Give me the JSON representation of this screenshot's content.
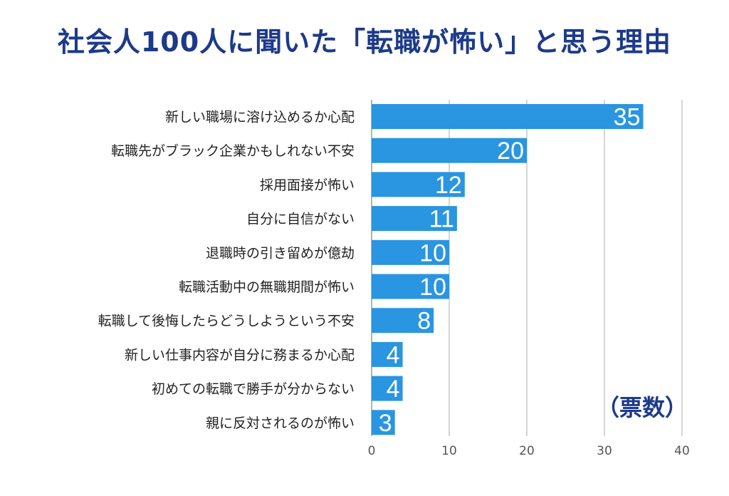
{
  "chart_data": {
    "type": "bar",
    "orientation": "horizontal",
    "title": "社会人100人に聞いた「転職が怖い」と思う理由",
    "unit_label": "（票数）",
    "categories": [
      "新しい職場に溶け込めるか心配",
      "転職先がブラック企業かもしれない不安",
      "採用面接が怖い",
      "自分に自信がない",
      "退職時の引き留めが億劫",
      "転職活動中の無職期間が怖い",
      "転職して後悔したらどうしようという不安",
      "新しい仕事内容が自分に務まるか心配",
      "初めての転職で勝手が分からない",
      "親に反対されるのが怖い"
    ],
    "values": [
      35,
      20,
      12,
      11,
      10,
      10,
      8,
      4,
      4,
      3
    ],
    "xlim": [
      0,
      40
    ],
    "xticks": [
      0,
      10,
      20,
      30,
      40
    ],
    "grid": true,
    "bar_color": "#2a95e0",
    "title_color": "#1d3a8a",
    "unit_color": "#1d3a8a"
  }
}
